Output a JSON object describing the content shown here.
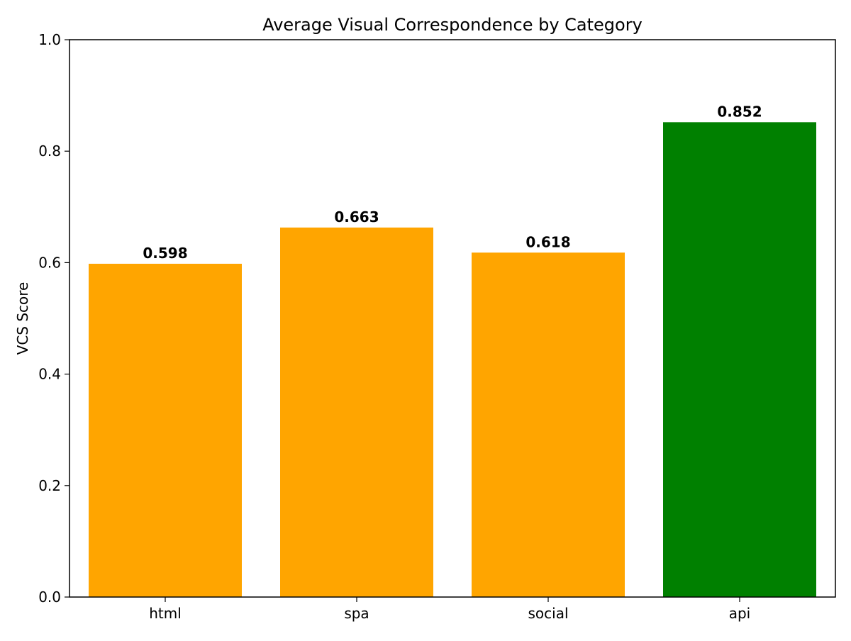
{
  "chart_data": {
    "type": "bar",
    "title": "Average Visual Correspondence by Category",
    "xlabel": "",
    "ylabel": "VCS Score",
    "categories": [
      "html",
      "spa",
      "social",
      "api"
    ],
    "values": [
      0.598,
      0.663,
      0.618,
      0.852
    ],
    "value_labels": [
      "0.598",
      "0.663",
      "0.618",
      "0.852"
    ],
    "bar_colors": [
      "#ffa500",
      "#ffa500",
      "#ffa500",
      "#008000"
    ],
    "ylim": [
      0,
      1.0
    ],
    "yticks": [
      0.0,
      0.2,
      0.4,
      0.6,
      0.8,
      1.0
    ],
    "ytick_labels": [
      "0.0",
      "0.2",
      "0.4",
      "0.6",
      "0.8",
      "1.0"
    ],
    "grid": false,
    "legend": "none"
  }
}
